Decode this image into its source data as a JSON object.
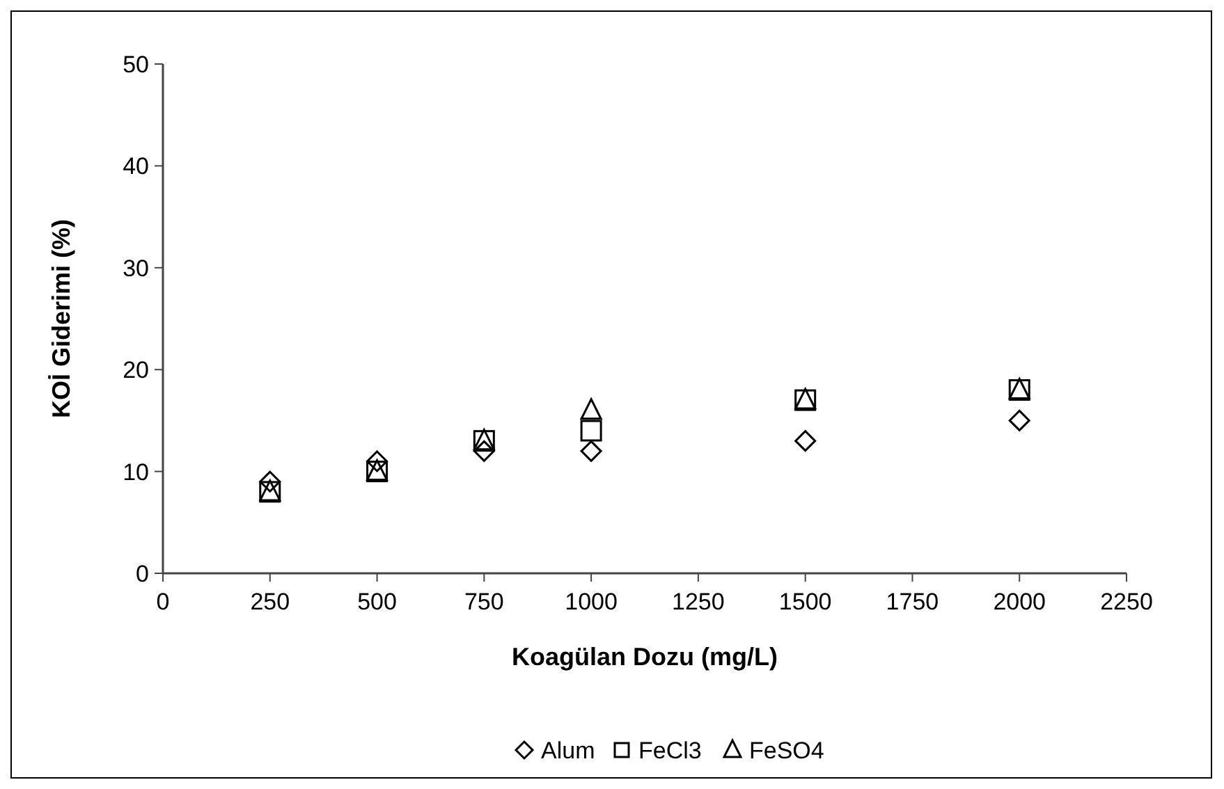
{
  "chart_data": {
    "type": "scatter",
    "xlabel": "Koagülan Dozu (mg/L)",
    "ylabel": "KOİ Giderimi (%)",
    "x": [
      250,
      500,
      750,
      1000,
      1500,
      2000
    ],
    "series": [
      {
        "name": "Alum",
        "color": "#000000",
        "marker": "diamond",
        "values": [
          9,
          11,
          12,
          12,
          13,
          15
        ]
      },
      {
        "name": "FeCl3",
        "color": "#000000",
        "marker": "square",
        "values": [
          8,
          10,
          13,
          14,
          17,
          18
        ]
      },
      {
        "name": "FeSO4",
        "color": "#000000",
        "marker": "triangle",
        "values": [
          8,
          10,
          13,
          16,
          17,
          18
        ]
      }
    ],
    "xlim": [
      0,
      2250
    ],
    "xticks": [
      0,
      250,
      500,
      750,
      1000,
      1250,
      1500,
      1750,
      2000,
      2250
    ],
    "ylim": [
      0,
      50
    ],
    "yticks": [
      0,
      10,
      20,
      30,
      40,
      50
    ],
    "grid": false,
    "legend": "bottom"
  }
}
